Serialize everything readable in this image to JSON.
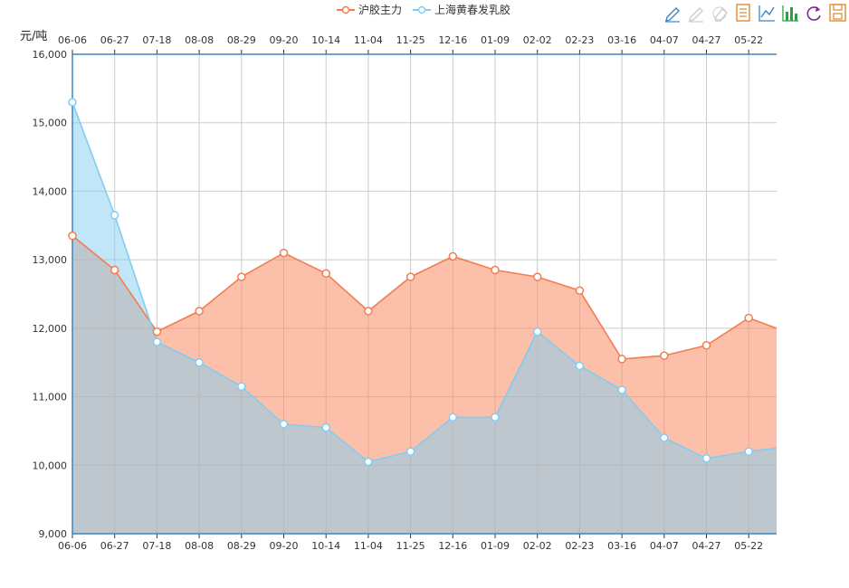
{
  "chart_data": {
    "type": "area",
    "unit_label": "元/吨",
    "legend": [
      {
        "name": "沪胶主力",
        "color": "#f47c50"
      },
      {
        "name": "上海黄春发乳胶",
        "color": "#81cdf2"
      }
    ],
    "categories": [
      "06-06",
      "06-27",
      "07-18",
      "08-08",
      "08-29",
      "09-20",
      "10-14",
      "11-04",
      "11-25",
      "12-16",
      "01-09",
      "02-02",
      "02-23",
      "03-16",
      "04-07",
      "04-27",
      "05-22"
    ],
    "ylim": [
      9000,
      16000
    ],
    "yticks": [
      9000,
      10000,
      11000,
      12000,
      13000,
      14000,
      15000,
      16000
    ],
    "ytick_labels": [
      "9,000",
      "10,000",
      "11,000",
      "12,000",
      "13,000",
      "14,000",
      "15,000",
      "16,000"
    ],
    "series": [
      {
        "name": "沪胶主力",
        "color": "#f47c50",
        "fill": "rgba(249,140,100,0.55)",
        "values": [
          13350,
          12850,
          11950,
          12250,
          12750,
          13100,
          12800,
          12250,
          12750,
          13050,
          12850,
          12750,
          12550,
          11550,
          11600,
          11750,
          12150
        ],
        "end_value": 12000
      },
      {
        "name": "上海黄春发乳胶",
        "color": "#81cdf2",
        "fill": "rgba(129,205,242,0.50)",
        "values": [
          15300,
          13650,
          11800,
          11500,
          11150,
          10600,
          10550,
          10050,
          10200,
          10700,
          10700,
          11950,
          11450,
          11100,
          10400,
          10100,
          10200
        ],
        "end_value": 10250
      }
    ],
    "toolbox_icons": [
      "mark-pen-icon",
      "mark-undo-icon",
      "mark-clear-icon",
      "data-view-icon",
      "line-icon",
      "bar-icon",
      "restore-icon",
      "save-icon"
    ],
    "grid": true,
    "legend_position": "top-center"
  }
}
